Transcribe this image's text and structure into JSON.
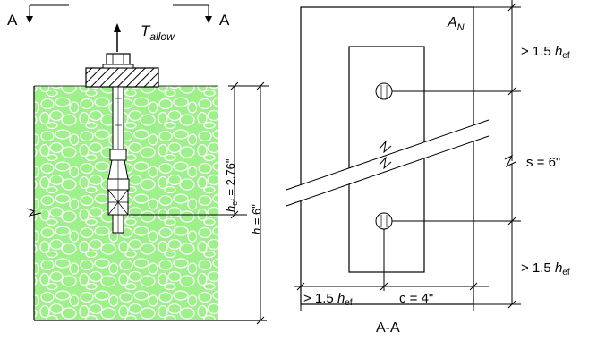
{
  "section_labels": {
    "left_a": "A",
    "right_a": "A",
    "section_title": "A-A"
  },
  "load": {
    "symbol": "T",
    "subscript": "allow"
  },
  "elevation": {
    "embed_label": "h",
    "embed_subscript": "ef",
    "embed_value": " = 2.76\"",
    "depth_label": "h",
    "depth_value": " = 6\""
  },
  "plan": {
    "area_symbol": "A",
    "area_subscript": "N",
    "top_edge_prefix": "> 1.5 ",
    "top_edge_h": "h",
    "top_edge_sub": "ef",
    "spacing_label": "s = 6\"",
    "bottom_edge_prefix": "> 1.5 ",
    "bottom_edge_h": "h",
    "bottom_edge_sub": "ef",
    "left_edge_prefix": "> 1.5 ",
    "left_edge_h": "h",
    "left_edge_sub": "ef",
    "edge_c_label": "c = 4\""
  },
  "colors": {
    "concrete_fill": "#9df08a",
    "aggregate_stroke": "#ffffff",
    "line": "#000000",
    "plate_hatch": "#000000"
  }
}
